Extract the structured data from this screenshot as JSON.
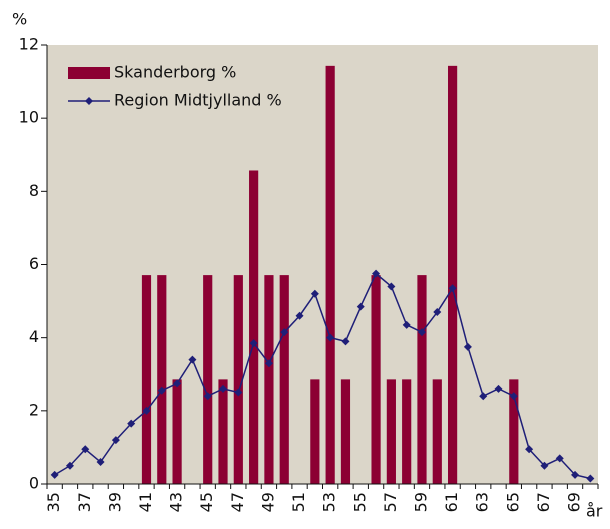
{
  "chart_data": {
    "type": "bar-line",
    "y_label": "%",
    "x_label": "år",
    "categories": [
      "35",
      null,
      "37",
      null,
      "39",
      null,
      "41",
      null,
      "43",
      null,
      "45",
      null,
      "47",
      null,
      "49",
      null,
      "51",
      null,
      "53",
      null,
      "55",
      null,
      "57",
      null,
      "59",
      null,
      "61",
      null,
      "63",
      null,
      "65",
      null,
      "67",
      null,
      "69",
      null
    ],
    "series": [
      {
        "name": "Skanderborg %",
        "color": "#8c0033",
        "kind": "bar",
        "values": [
          0,
          0,
          0,
          0,
          0,
          0,
          5.71,
          5.71,
          2.86,
          0,
          5.71,
          2.86,
          5.71,
          8.57,
          5.71,
          5.71,
          0,
          2.86,
          11.43,
          2.86,
          0,
          5.71,
          2.86,
          2.86,
          5.71,
          2.86,
          11.43,
          0,
          0,
          0,
          2.86,
          0,
          0,
          0,
          0,
          0
        ]
      },
      {
        "name": "Region Midtjylland %",
        "color": "#1f1f78",
        "kind": "line",
        "values": [
          0.25,
          0.5,
          0.95,
          0.6,
          1.2,
          1.65,
          2.0,
          2.55,
          2.75,
          3.4,
          2.4,
          2.6,
          2.5,
          3.85,
          3.3,
          4.15,
          4.6,
          5.2,
          4.0,
          3.9,
          4.85,
          5.75,
          5.4,
          4.35,
          4.15,
          4.7,
          5.35,
          3.75,
          2.4,
          2.6,
          2.4,
          0.95,
          0.5,
          0.7,
          0.25,
          0.15
        ]
      }
    ],
    "ylim": [
      0,
      12
    ],
    "yticks": [
      0,
      2,
      4,
      6,
      8,
      10,
      12
    ],
    "background": "#dbd6c9"
  }
}
